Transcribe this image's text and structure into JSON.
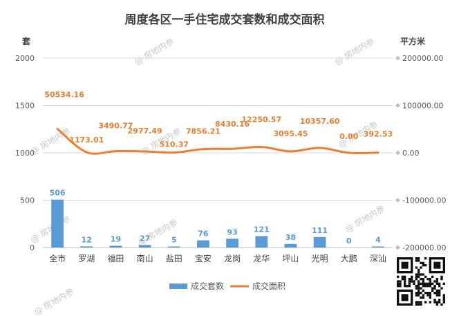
{
  "chart_data": {
    "type": "bar+line",
    "title": "周度各区一手住宅成交套数和成交面积",
    "y_left_unit": "套",
    "y_right_unit": "平方米",
    "categories": [
      "全市",
      "罗湖",
      "福田",
      "南山",
      "盐田",
      "宝安",
      "龙岗",
      "龙华",
      "坪山",
      "光明",
      "大鹏",
      "深汕"
    ],
    "series": [
      {
        "name": "成交套数",
        "type": "bar",
        "axis": "left",
        "values": [
          506,
          12,
          19,
          27,
          5,
          76,
          93,
          121,
          38,
          111,
          0,
          4
        ],
        "labels": [
          "506",
          "12",
          "19",
          "27",
          "5",
          "76",
          "93",
          "121",
          "38",
          "111",
          "0",
          "4"
        ],
        "color": "#5b9bd5"
      },
      {
        "name": "成交面积",
        "type": "line",
        "axis": "right",
        "values": [
          50534.16,
          1173.01,
          3490.77,
          2977.49,
          510.37,
          7856.21,
          8430.16,
          12250.57,
          3095.45,
          10357.6,
          0.0,
          392.53
        ],
        "labels": [
          "50534.16",
          "1173.01",
          "3490.77",
          "2977.49",
          "510.37",
          "7856.21",
          "8430.16",
          "12250.57",
          "3095.45",
          "10357.60",
          "0.00",
          "392.53"
        ],
        "color": "#ed7d31"
      }
    ],
    "y_left": {
      "min": 0,
      "max": 2000,
      "ticks": [
        "0",
        "500",
        "1000",
        "1500",
        "2000"
      ]
    },
    "y_right": {
      "min": -200000,
      "max": 200000,
      "ticks": [
        "-200000.00",
        "-100000.00",
        "0.00",
        "100000.00",
        "200000.00"
      ]
    },
    "grid": true,
    "legend_position": "bottom"
  },
  "watermark": "@ 房地内参",
  "qr_icon": "qr-code-icon"
}
